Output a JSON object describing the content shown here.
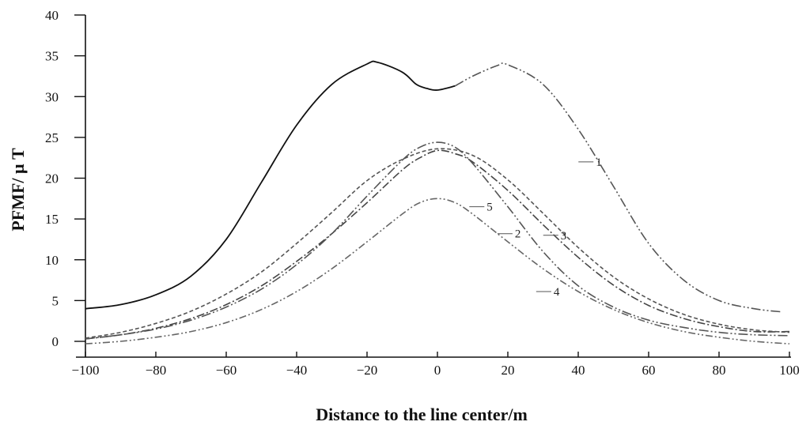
{
  "chart_data": {
    "type": "line",
    "title": "",
    "xlabel": "Distance to the line center/m",
    "ylabel": "PFMF/ μ T",
    "xlim": [
      -100,
      100
    ],
    "ylim": [
      0,
      40
    ],
    "x_ticks": [
      "−100",
      "−80",
      "−60",
      "−40",
      "−20",
      "0",
      "20",
      "40",
      "60",
      "80",
      "100"
    ],
    "y_ticks": [
      "0",
      "5",
      "10",
      "15",
      "20",
      "25",
      "30",
      "35",
      "40"
    ],
    "grid": false,
    "legend": "none",
    "series": [
      {
        "name": "1",
        "color": "#111111",
        "x": [
          -100,
          -90,
          -80,
          -70,
          -60,
          -50,
          -40,
          -30,
          -20,
          -17,
          -10,
          -6,
          -3,
          0,
          5,
          10,
          17,
          20,
          30,
          40,
          50,
          60,
          70,
          80,
          90,
          98
        ],
        "y": [
          4.0,
          4.5,
          5.7,
          8.0,
          12.5,
          19.5,
          26.5,
          31.5,
          34.0,
          34.2,
          33.0,
          31.5,
          31.0,
          30.8,
          31.3,
          32.5,
          33.8,
          33.9,
          31.5,
          26.0,
          19.0,
          12.0,
          7.5,
          5.0,
          4.0,
          3.6
        ]
      },
      {
        "name": "2",
        "color": "#444444",
        "x": [
          -100,
          -90,
          -80,
          -70,
          -60,
          -50,
          -40,
          -30,
          -20,
          -10,
          -5,
          0,
          5,
          10,
          20,
          30,
          40,
          50,
          60,
          70,
          80,
          90,
          100
        ],
        "y": [
          0.3,
          0.8,
          1.6,
          2.8,
          4.5,
          6.8,
          9.8,
          13.2,
          17.0,
          21.0,
          22.5,
          23.4,
          23.0,
          22.0,
          18.5,
          14.3,
          10.3,
          6.9,
          4.4,
          2.8,
          1.8,
          1.2,
          1.2
        ]
      },
      {
        "name": "3",
        "color": "#555555",
        "x": [
          -100,
          -90,
          -80,
          -70,
          -60,
          -50,
          -40,
          -30,
          -20,
          -10,
          0,
          10,
          20,
          30,
          40,
          50,
          60,
          70,
          80,
          90,
          100
        ],
        "y": [
          0.4,
          1.1,
          2.2,
          3.7,
          5.8,
          8.5,
          12.0,
          15.8,
          19.7,
          22.3,
          23.6,
          22.8,
          19.8,
          15.7,
          11.5,
          7.9,
          5.2,
          3.3,
          2.1,
          1.4,
          1.1
        ]
      },
      {
        "name": "4",
        "color": "#555555",
        "x": [
          -100,
          -90,
          -80,
          -70,
          -60,
          -50,
          -40,
          -30,
          -20,
          -10,
          -5,
          0,
          5,
          10,
          20,
          30,
          40,
          50,
          60,
          70,
          80,
          90,
          100
        ],
        "y": [
          0.3,
          0.8,
          1.5,
          2.6,
          4.2,
          6.4,
          9.4,
          13.2,
          17.8,
          22.2,
          23.8,
          24.4,
          23.8,
          21.8,
          16.5,
          11.0,
          6.8,
          4.2,
          2.6,
          1.7,
          1.1,
          0.8,
          0.7
        ]
      },
      {
        "name": "5",
        "color": "#666666",
        "x": [
          -100,
          -90,
          -80,
          -70,
          -60,
          -50,
          -40,
          -30,
          -20,
          -10,
          -5,
          0,
          5,
          10,
          20,
          30,
          40,
          50,
          60,
          70,
          80,
          90,
          100
        ],
        "y": [
          -0.3,
          0.0,
          0.5,
          1.2,
          2.3,
          3.9,
          6.1,
          8.9,
          12.2,
          15.6,
          17.0,
          17.5,
          17.0,
          15.6,
          12.2,
          8.9,
          6.1,
          3.9,
          2.3,
          1.2,
          0.5,
          0.0,
          -0.3
        ]
      }
    ],
    "annotations": [
      {
        "text": "1",
        "x": 45,
        "y": 22
      },
      {
        "text": "2",
        "x": 22,
        "y": 13.2
      },
      {
        "text": "3",
        "x": 35,
        "y": 13.0
      },
      {
        "text": "4",
        "x": 33,
        "y": 6.1
      },
      {
        "text": "5",
        "x": 14,
        "y": 16.5
      }
    ]
  }
}
